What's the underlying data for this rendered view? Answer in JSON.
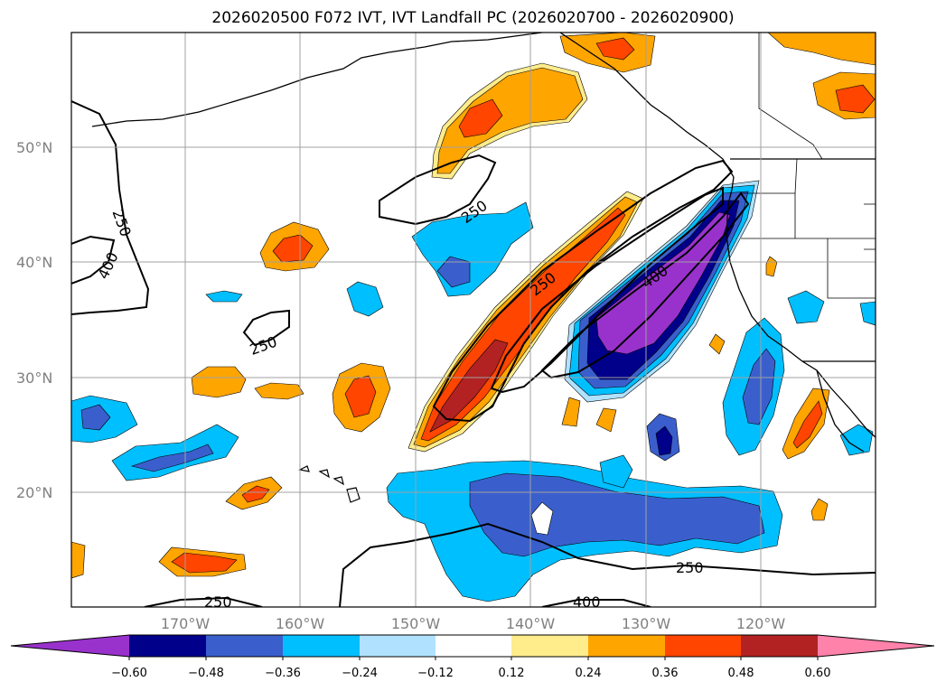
{
  "title": "2026020500 F072 IVT, IVT Landfall PC (2026020700 - 2026020900)",
  "latitude_labels": [
    "50°N",
    "40°N",
    "30°N",
    "20°N"
  ],
  "longitude_labels": [
    "170°W",
    "160°W",
    "150°W",
    "140°W",
    "130°W",
    "120°W"
  ],
  "contour_labels": [
    "250",
    "400",
    "250",
    "250",
    "400",
    "250",
    "250",
    "400"
  ],
  "colorbar": {
    "ticks": [
      "−0.60",
      "−0.48",
      "−0.36",
      "−0.24",
      "−0.12",
      "0.12",
      "0.24",
      "0.36",
      "0.48",
      "0.60"
    ],
    "colors": [
      "#9932cc",
      "#00008b",
      "#3a5fcd",
      "#00bfff",
      "#b0e2ff",
      "#ffffff",
      "#ffec8b",
      "#ffa500",
      "#ff4500",
      "#b22222",
      "#ff82ab"
    ]
  },
  "colors": {
    "coast": "#000000",
    "grid": "#a0a0a0"
  }
}
